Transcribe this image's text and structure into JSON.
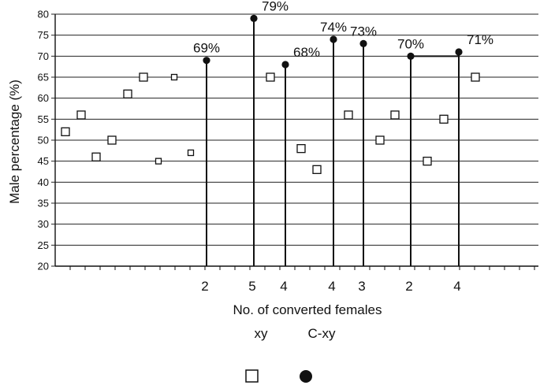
{
  "chart_data": {
    "type": "scatter",
    "title": "",
    "xlabel": "No. of converted females",
    "ylabel": "Male percentage (%)",
    "ylim": [
      20,
      80
    ],
    "yticks": [
      20,
      25,
      30,
      35,
      40,
      45,
      50,
      55,
      60,
      65,
      70,
      75,
      80
    ],
    "grid": "horizontal",
    "group_labels": [
      "xy",
      "C-xy"
    ],
    "legend": {
      "placement": "bottom-center",
      "entries": [
        {
          "marker": "open-square",
          "label": ""
        },
        {
          "marker": "filled-circle",
          "label": ""
        }
      ]
    },
    "series": [
      {
        "marker": "open-square",
        "points": [
          {
            "y": 52
          },
          {
            "y": 56
          },
          {
            "y": 46
          },
          {
            "y": 50
          },
          {
            "y": 61
          },
          {
            "y": 65
          },
          {
            "y": 45
          },
          {
            "y": 65
          },
          {
            "y": 47
          },
          {
            "y": 65
          },
          {
            "y": 48
          },
          {
            "y": 43
          },
          {
            "y": 56
          },
          {
            "y": 50
          },
          {
            "y": 56
          },
          {
            "y": 45
          },
          {
            "y": 55
          },
          {
            "y": 65
          }
        ]
      },
      {
        "marker": "filled-circle",
        "points": [
          {
            "y": 69,
            "label": "69%",
            "count": "2"
          },
          {
            "y": 79,
            "label": "79%",
            "count": "5"
          },
          {
            "y": 68,
            "label": "68%",
            "count": "4"
          },
          {
            "y": 74,
            "label": "74%",
            "count": "4"
          },
          {
            "y": 73,
            "label": "73%",
            "count": "3"
          },
          {
            "y": 70,
            "label": "70%",
            "count": "2"
          },
          {
            "y": 71,
            "label": "71%",
            "count": "4"
          }
        ]
      }
    ]
  }
}
